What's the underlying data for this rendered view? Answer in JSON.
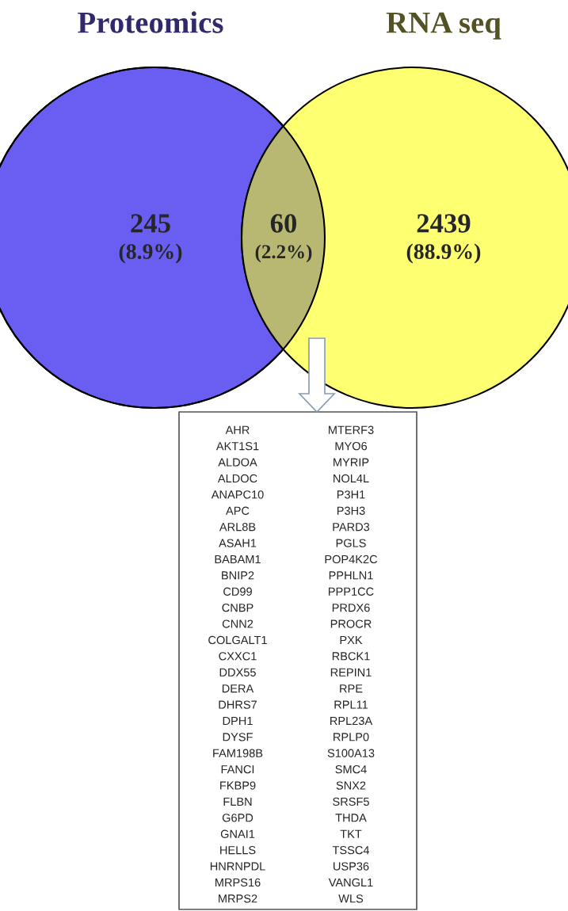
{
  "chart_data": {
    "type": "other",
    "categories": [
      "Proteomics",
      null,
      "RNA seq"
    ],
    "colors": [
      "#6a5ef2",
      "#b8b873",
      "#ffff72"
    ],
    "values": [
      245,
      60,
      2439
    ],
    "data_labels": true,
    "annotations": [
      "(8.9%)",
      "(2.2%)",
      "(88.9%)",
      "AHR",
      "AKT1S1",
      "ALDOA",
      "ALDOC",
      "ANAPC10",
      "APC",
      "ARL8B",
      "ASAH1",
      "BABAM1",
      "BNIP2",
      "CD99",
      "CNBP",
      "CNN2",
      "COLGALT1",
      "CXXC1",
      "DDX55",
      "DERA",
      "DHRS7",
      "DPH1",
      "DYSF",
      "FAM198B",
      "FANCI",
      "FKBP9",
      "FLBN",
      "G6PD",
      "GNAI1",
      "HELLS",
      "HNRNPDL",
      "MRPS16",
      "MRPS2",
      "MTERF3",
      "MYO6",
      "MYRIP",
      "NOL4L",
      "P3H1",
      "P3H3",
      "PARD3",
      "PGLS",
      "POP4K2C",
      "PPHLN1",
      "PPP1CC",
      "PRDX6",
      "PROCR",
      "PXK",
      "RBCK1",
      "REPIN1",
      "RPE",
      "RPL11",
      "RPL23A",
      "RPLP0",
      "S100A13",
      "SMC4",
      "SNX2",
      "SRSF5",
      "THDA",
      "TKT",
      "TSSC4",
      "USP36",
      "VANGL1",
      "WLS"
    ]
  }
}
